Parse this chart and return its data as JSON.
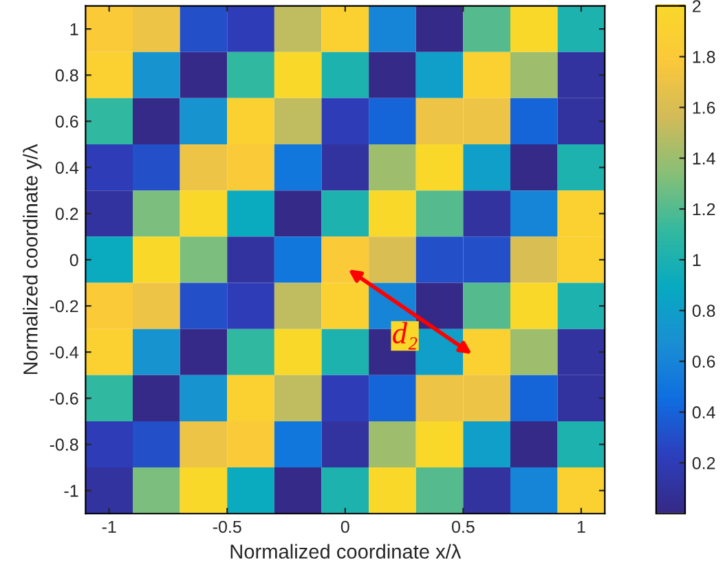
{
  "chart_data": {
    "type": "heatmap",
    "xlabel": "Normalized coordinate x/λ",
    "ylabel": "Normalized coordinate y/λ",
    "x": [
      -1,
      -0.8,
      -0.6,
      -0.4,
      -0.2,
      0,
      0.2,
      0.4,
      0.6,
      0.8,
      1
    ],
    "y_categories": [
      "1",
      "0.8",
      "0.6",
      "0.4",
      "0.2",
      "0",
      "-0.2",
      "-0.4",
      "-0.6",
      "-0.8",
      "-1"
    ],
    "cells": [
      [
        1.8,
        1.7,
        0.3,
        0.2,
        1.5,
        1.9,
        0.6,
        0.0,
        1.2,
        2.0,
        1.0
      ],
      [
        1.9,
        0.7,
        0.0,
        1.1,
        2.0,
        1.0,
        0.0,
        0.8,
        1.9,
        1.4,
        0.1
      ],
      [
        1.1,
        0.0,
        0.7,
        1.9,
        1.5,
        0.2,
        0.4,
        1.7,
        1.7,
        0.4,
        0.1
      ],
      [
        0.2,
        0.3,
        1.7,
        1.8,
        0.5,
        0.1,
        1.4,
        2.0,
        0.8,
        0.0,
        1.0
      ],
      [
        0.1,
        1.3,
        2.0,
        0.9,
        0.0,
        1.0,
        2.0,
        1.2,
        0.1,
        0.6,
        1.9
      ],
      [
        0.9,
        2.0,
        1.3,
        0.1,
        0.5,
        1.8,
        1.6,
        0.3,
        0.3,
        1.6,
        1.9
      ],
      [
        1.8,
        1.7,
        0.3,
        0.2,
        1.5,
        1.9,
        0.6,
        0.0,
        1.2,
        2.0,
        1.0
      ],
      [
        1.9,
        0.7,
        0.0,
        1.1,
        2.0,
        1.0,
        0.0,
        0.8,
        1.9,
        1.4,
        0.1
      ],
      [
        1.1,
        0.0,
        0.7,
        1.9,
        1.5,
        0.2,
        0.4,
        1.7,
        1.7,
        0.4,
        0.1
      ],
      [
        0.2,
        0.3,
        1.7,
        1.8,
        0.5,
        0.1,
        1.4,
        2.0,
        0.8,
        0.0,
        1.0
      ],
      [
        0.1,
        1.3,
        2.0,
        0.9,
        0.0,
        1.0,
        2.0,
        1.2,
        0.1,
        0.6,
        1.9
      ]
    ],
    "xlim": [
      -1.1,
      1.1
    ],
    "xticks": [
      -1,
      -0.5,
      0,
      0.5,
      1
    ],
    "clim": [
      0,
      2
    ],
    "cticks": [
      0.2,
      0.4,
      0.6,
      0.8,
      1,
      1.2,
      1.4,
      1.6,
      1.8,
      2
    ],
    "annotations": [
      "d₂"
    ],
    "grid": false
  }
}
